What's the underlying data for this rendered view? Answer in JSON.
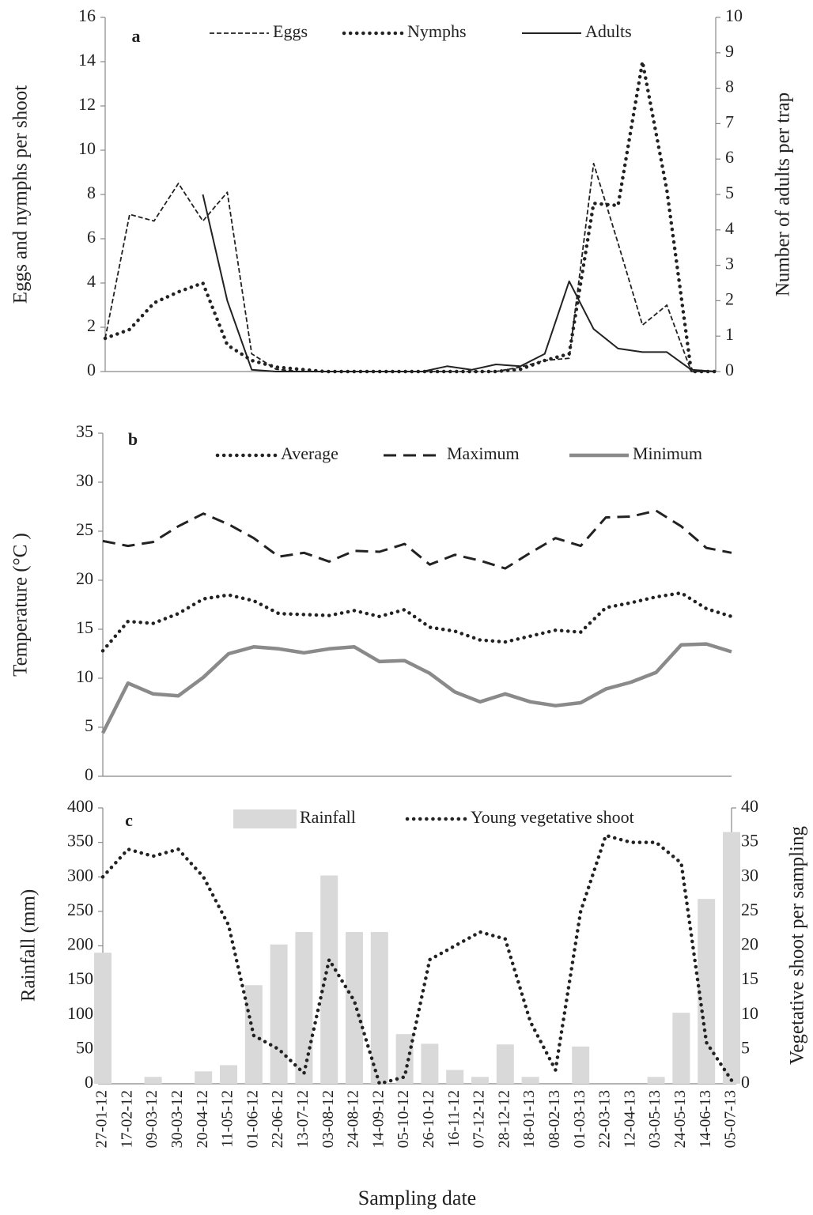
{
  "chart_data": [
    {
      "type": "line",
      "panel_label": "a",
      "y_label": "Eggs and nymphs per shoot",
      "y2_label": "Number of adults per trap",
      "ylim": [
        0,
        16
      ],
      "yticks": [
        0,
        2,
        4,
        6,
        8,
        10,
        12,
        14,
        16
      ],
      "y2lim": [
        0,
        10
      ],
      "y2ticks": [
        0,
        1,
        2,
        3,
        4,
        5,
        6,
        7,
        8,
        9,
        10
      ],
      "series": [
        {
          "name": "Eggs",
          "color": "#222222",
          "dash": "dashed",
          "values": [
            1.5,
            7.1,
            6.8,
            8.5,
            6.8,
            8.1,
            0.8,
            0.1,
            0,
            0,
            0,
            0,
            0,
            0,
            0,
            0,
            0,
            0.2,
            0.5,
            0.6,
            9.4,
            5.8,
            2.1,
            3.0,
            0,
            0
          ]
        },
        {
          "name": "Nymphs",
          "color": "#222222",
          "dash": "dotted",
          "values": [
            1.5,
            1.9,
            3.1,
            3.6,
            4.0,
            1.2,
            0.5,
            0.2,
            0.1,
            0,
            0,
            0,
            0,
            0,
            0,
            0,
            0,
            0.1,
            0.5,
            0.8,
            7.6,
            7.5,
            14.0,
            8.2,
            0,
            0
          ]
        },
        {
          "name": "Adults",
          "color": "#222222",
          "dash": "solid",
          "axis": "y2",
          "values": [
            null,
            null,
            null,
            null,
            5.0,
            2.0,
            0.05,
            0,
            0,
            0,
            0,
            0,
            0,
            0,
            0.15,
            0.05,
            0.2,
            0.15,
            0.5,
            2.55,
            1.2,
            0.65,
            0.55,
            0.55,
            0.05,
            0
          ]
        }
      ]
    },
    {
      "type": "line",
      "panel_label": "b",
      "y_label": "Temperature (°C )",
      "ylim": [
        0,
        35
      ],
      "yticks": [
        0,
        5,
        10,
        15,
        20,
        25,
        30,
        35
      ],
      "series": [
        {
          "name": "Average",
          "color": "#222222",
          "dash": "dotted",
          "values": [
            12.8,
            15.8,
            15.6,
            16.6,
            18.1,
            18.5,
            17.9,
            16.6,
            16.5,
            16.4,
            16.9,
            16.3,
            17.0,
            15.2,
            14.8,
            13.9,
            13.7,
            14.3,
            14.9,
            14.7,
            17.2,
            17.7,
            18.3,
            18.7,
            17.1,
            16.3
          ]
        },
        {
          "name": "Maximum",
          "color": "#222222",
          "dash": "longdash",
          "values": [
            24.0,
            23.5,
            23.9,
            25.5,
            26.8,
            25.7,
            24.3,
            22.4,
            22.8,
            21.9,
            23.0,
            22.9,
            23.7,
            21.6,
            22.6,
            22.0,
            21.2,
            22.8,
            24.3,
            23.5,
            26.4,
            26.5,
            27.1,
            25.5,
            23.3,
            22.8
          ]
        },
        {
          "name": "Minimum",
          "color": "#8a8a8a",
          "dash": "thick",
          "values": [
            4.4,
            9.5,
            8.4,
            8.2,
            10.1,
            12.5,
            13.2,
            13.0,
            12.6,
            13.0,
            13.2,
            11.7,
            11.8,
            10.5,
            8.6,
            7.6,
            8.4,
            7.6,
            7.2,
            7.5,
            8.9,
            9.6,
            10.6,
            13.4,
            13.5,
            12.7
          ]
        }
      ]
    },
    {
      "type": "combo",
      "panel_label": "c",
      "y_label": "Rainfall (mm)",
      "y2_label": "Vegetative shoot  per sampling",
      "x_label": "Sampling date",
      "categories": [
        "27-01-12",
        "17-02-12",
        "09-03-12",
        "30-03-12",
        "20-04-12",
        "11-05-12",
        "01-06-12",
        "22-06-12",
        "13-07-12",
        "03-08-12",
        "24-08-12",
        "14-09-12",
        "05-10-12",
        "26-10-12",
        "16-11-12",
        "07-12-12",
        "28-12-12",
        "18-01-13",
        "08-02-13",
        "01-03-13",
        "22-03-13",
        "12-04-13",
        "03-05-13",
        "24-05-13",
        "14-06-13",
        "05-07-13"
      ],
      "ylim": [
        0,
        400
      ],
      "yticks": [
        0,
        50,
        100,
        150,
        200,
        250,
        300,
        350,
        400
      ],
      "y2lim": [
        0,
        40
      ],
      "y2ticks": [
        0,
        5,
        10,
        15,
        20,
        25,
        30,
        35,
        40
      ],
      "series": [
        {
          "name": "Rainfall",
          "type": "bar",
          "color": "#d9d9d9",
          "values": [
            190,
            0,
            10,
            0,
            18,
            27,
            143,
            202,
            220,
            302,
            220,
            220,
            72,
            58,
            20,
            10,
            57,
            10,
            0,
            54,
            0,
            0,
            10,
            103,
            268,
            365
          ]
        },
        {
          "name": "Young vegetative shoot",
          "type": "line",
          "color": "#222222",
          "dash": "dotted",
          "axis": "y2",
          "values": [
            30,
            34,
            33,
            34,
            30,
            23,
            7,
            5,
            1.5,
            18,
            12,
            0,
            1,
            18,
            20,
            22,
            21,
            9,
            2,
            25,
            36,
            35,
            35,
            32,
            6,
            0.5
          ]
        }
      ]
    }
  ]
}
